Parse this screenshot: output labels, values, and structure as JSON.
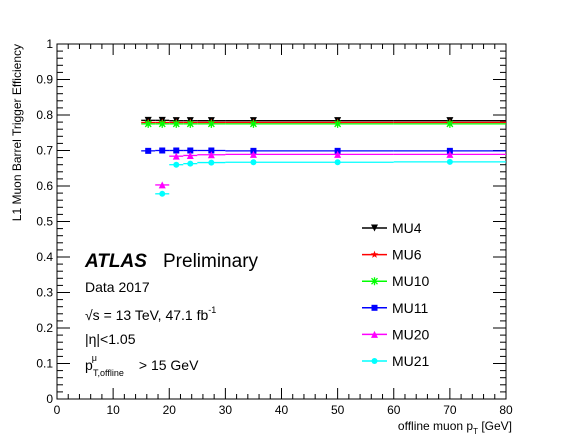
{
  "chart_data": {
    "type": "scatter",
    "xlabel_main": "offline muon p",
    "xlabel_sub": "T",
    "xlabel_unit": " [GeV]",
    "ylabel": "L1 Muon Barrel Trigger Efficiency",
    "xlim": [
      0,
      80
    ],
    "ylim": [
      0,
      1
    ],
    "x_ticks": [
      "0",
      "10",
      "20",
      "30",
      "40",
      "50",
      "60",
      "70",
      "80"
    ],
    "y_ticks": [
      "0",
      "0.1",
      "0.2",
      "0.3",
      "0.4",
      "0.5",
      "0.6",
      "0.7",
      "0.8",
      "0.9",
      "1"
    ],
    "grid": false,
    "legend_position": "center-right",
    "series": [
      {
        "name": "MU4",
        "color": "#000000",
        "marker": "triangle-down",
        "x": [
          16.25,
          18.75,
          21.25,
          23.75,
          27.5,
          35,
          50,
          70
        ],
        "xerr": [
          1.25,
          1.25,
          1.25,
          1.25,
          2.5,
          5,
          10,
          10
        ],
        "y": [
          0.785,
          0.785,
          0.784,
          0.784,
          0.784,
          0.784,
          0.784,
          0.784
        ]
      },
      {
        "name": "MU6",
        "color": "#ff0000",
        "marker": "star",
        "x": [
          16.25,
          18.75,
          21.25,
          23.75,
          27.5,
          35,
          50,
          70
        ],
        "xerr": [
          1.25,
          1.25,
          1.25,
          1.25,
          2.5,
          5,
          10,
          10
        ],
        "y": [
          0.779,
          0.779,
          0.779,
          0.779,
          0.779,
          0.779,
          0.779,
          0.779
        ]
      },
      {
        "name": "MU10",
        "color": "#00ff00",
        "marker": "x-star",
        "x": [
          16.25,
          18.75,
          21.25,
          23.75,
          27.5,
          35,
          50,
          70
        ],
        "xerr": [
          1.25,
          1.25,
          1.25,
          1.25,
          2.5,
          5,
          10,
          10
        ],
        "y": [
          0.775,
          0.775,
          0.775,
          0.775,
          0.775,
          0.775,
          0.775,
          0.775
        ]
      },
      {
        "name": "MU11",
        "color": "#0000ff",
        "marker": "square",
        "x": [
          16.25,
          18.75,
          21.25,
          23.75,
          27.5,
          35,
          50,
          70
        ],
        "xerr": [
          1.25,
          1.25,
          1.25,
          1.25,
          2.5,
          5,
          10,
          10
        ],
        "y": [
          0.699,
          0.7,
          0.7,
          0.7,
          0.7,
          0.699,
          0.699,
          0.699
        ]
      },
      {
        "name": "MU20",
        "color": "#ff00ff",
        "marker": "triangle-up",
        "x": [
          18.75,
          21.25,
          23.75,
          27.5,
          35,
          50,
          70
        ],
        "xerr": [
          1.25,
          1.25,
          1.25,
          2.5,
          5,
          10,
          10
        ],
        "y": [
          0.603,
          0.684,
          0.686,
          0.688,
          0.689,
          0.689,
          0.689
        ]
      },
      {
        "name": "MU21",
        "color": "#00ffff",
        "marker": "circle",
        "x": [
          18.75,
          21.25,
          23.75,
          27.5,
          35,
          50,
          70
        ],
        "xerr": [
          1.25,
          1.25,
          1.25,
          2.5,
          5,
          10,
          10
        ],
        "y": [
          0.578,
          0.66,
          0.663,
          0.666,
          0.667,
          0.667,
          0.668
        ]
      }
    ],
    "annotations": {
      "atlas": "ATLAS",
      "preliminary": "Preliminary",
      "dataset": "Data 2017",
      "energy_prefix": "√s = 13 TeV, 47.1 fb",
      "energy_sup": "-1",
      "eta": "|η|<1.05",
      "pt_main": "p",
      "pt_sup": "μ",
      "pt_sub": "T,offline",
      "pt_rest": " > 15 GeV"
    }
  }
}
